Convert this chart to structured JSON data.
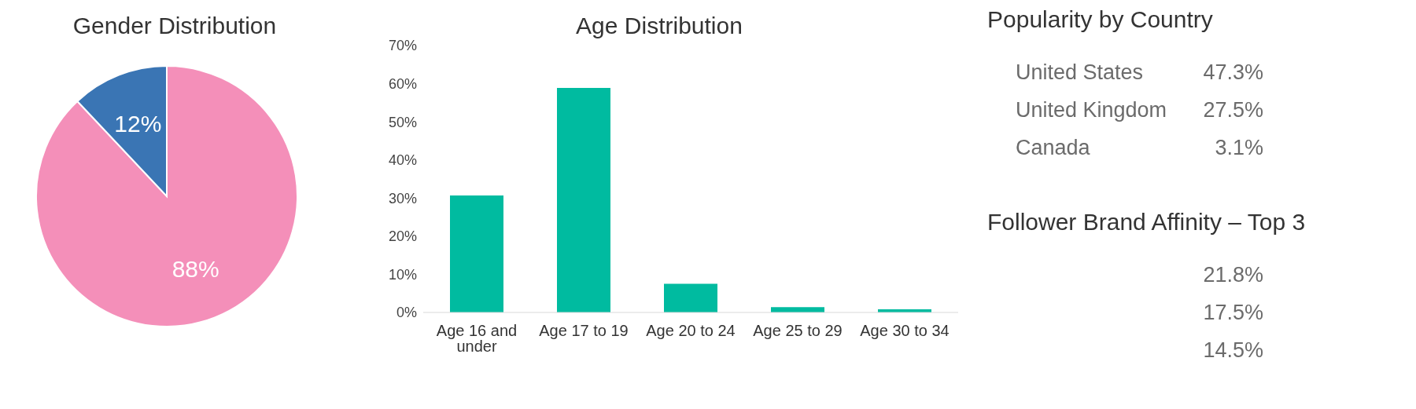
{
  "chart_data": [
    {
      "type": "pie",
      "title": "Gender Distribution",
      "categories": [
        null,
        null
      ],
      "values": [
        88,
        12
      ],
      "colors": [
        "#f48fb9",
        "#3a75b4"
      ],
      "value_labels": [
        "88%",
        "12%"
      ]
    },
    {
      "type": "bar",
      "title": "Age Distribution",
      "categories": [
        "Age 16 and under",
        "Age 17 to 19",
        "Age 20 to 24",
        "Age 25 to 29",
        "Age 30 to 34"
      ],
      "values": [
        30.7,
        58.9,
        7.5,
        1.4,
        0.8
      ],
      "color": "#00bba0",
      "ylim": [
        0,
        70
      ],
      "yticks": [
        {
          "value": 0,
          "label": "0%"
        },
        {
          "value": 10,
          "label": "10%"
        },
        {
          "value": 20,
          "label": "20%"
        },
        {
          "value": 30,
          "label": "30%"
        },
        {
          "value": 40,
          "label": "40%"
        },
        {
          "value": 50,
          "label": "50%"
        },
        {
          "value": 60,
          "label": "60%"
        },
        {
          "value": 70,
          "label": "70%"
        }
      ],
      "grid": false
    },
    {
      "type": "other",
      "title": "Popularity by Country",
      "categories": [
        "United States",
        "United Kingdom",
        "Canada"
      ],
      "values": [
        47.3,
        27.5,
        3.1
      ],
      "value_labels": [
        "47.3%",
        "27.5%",
        "3.1%"
      ]
    },
    {
      "type": "other",
      "title": "Follower Brand Affinity – Top 3",
      "categories": [
        null,
        null,
        null
      ],
      "values": [
        21.8,
        17.5,
        14.5
      ],
      "value_labels": [
        "21.8%",
        "17.5%",
        "14.5%"
      ]
    }
  ]
}
